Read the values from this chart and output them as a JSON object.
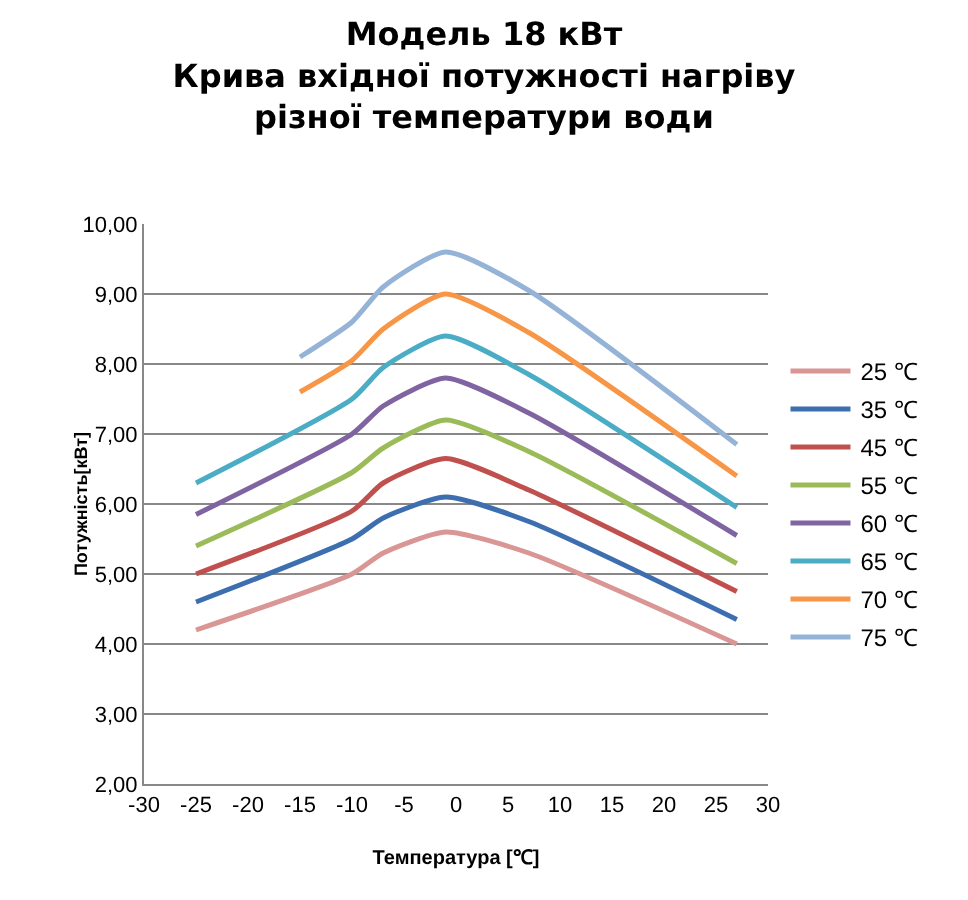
{
  "chart_data": {
    "type": "line",
    "title": "Модель 18 кВт\nКрива вхідної потужності нагріву\nрізної температури води",
    "xlabel": "Температура [℃]",
    "ylabel": "Потужність[кВт]",
    "xlim": [
      -30,
      30
    ],
    "xticks": [
      -30,
      -25,
      -20,
      -15,
      -10,
      -5,
      0,
      5,
      10,
      15,
      20,
      25,
      30
    ],
    "ylim": [
      2,
      10
    ],
    "yticks": [
      {
        "value": 2,
        "label": "2,00"
      },
      {
        "value": 3,
        "label": "3,00"
      },
      {
        "value": 4,
        "label": "4,00"
      },
      {
        "value": 5,
        "label": "5,00"
      },
      {
        "value": 6,
        "label": "6,00"
      },
      {
        "value": 7,
        "label": "7,00"
      },
      {
        "value": 8,
        "label": "8,00"
      },
      {
        "value": 9,
        "label": "9,00"
      },
      {
        "value": 10,
        "label": "10,00"
      }
    ],
    "grid": "y",
    "legend": "right",
    "marker": "none",
    "line_style": "solid",
    "series": [
      {
        "name": "25 ℃",
        "color": "#d99694",
        "x": [
          -25,
          -10,
          -7,
          -1,
          7,
          27
        ],
        "values": [
          4.2,
          5.0,
          5.3,
          5.6,
          5.3,
          4.0
        ]
      },
      {
        "name": "35 ℃",
        "color": "#3d6eaf",
        "x": [
          -25,
          -10,
          -7,
          -1,
          7,
          27
        ],
        "values": [
          4.6,
          5.5,
          5.8,
          6.1,
          5.75,
          4.35
        ]
      },
      {
        "name": "45 ℃",
        "color": "#c0504d",
        "x": [
          -25,
          -10,
          -7,
          -1,
          7,
          27
        ],
        "values": [
          5.0,
          5.9,
          6.3,
          6.65,
          6.2,
          4.75
        ]
      },
      {
        "name": "55 ℃",
        "color": "#9bbb59",
        "x": [
          -25,
          -10,
          -7,
          -1,
          7,
          27
        ],
        "values": [
          5.4,
          6.45,
          6.8,
          7.2,
          6.75,
          5.15
        ]
      },
      {
        "name": "60 ℃",
        "color": "#8064a2",
        "x": [
          -25,
          -10,
          -7,
          -1,
          7,
          27
        ],
        "values": [
          5.85,
          7.0,
          7.4,
          7.8,
          7.3,
          5.55
        ]
      },
      {
        "name": "65 ℃",
        "color": "#4bacc6",
        "x": [
          -25,
          -10,
          -7,
          -1,
          7,
          27
        ],
        "values": [
          6.3,
          7.5,
          7.95,
          8.4,
          7.85,
          5.95
        ]
      },
      {
        "name": "70 ℃",
        "color": "#f79646",
        "x": [
          -15,
          -10,
          -7,
          -1,
          7,
          27
        ],
        "values": [
          7.6,
          8.05,
          8.5,
          9.0,
          8.45,
          6.4
        ]
      },
      {
        "name": "75 ℃",
        "color": "#95b3d7",
        "x": [
          -15,
          -10,
          -7,
          -1,
          7,
          27
        ],
        "values": [
          8.1,
          8.6,
          9.1,
          9.6,
          9.05,
          6.85
        ]
      }
    ]
  }
}
